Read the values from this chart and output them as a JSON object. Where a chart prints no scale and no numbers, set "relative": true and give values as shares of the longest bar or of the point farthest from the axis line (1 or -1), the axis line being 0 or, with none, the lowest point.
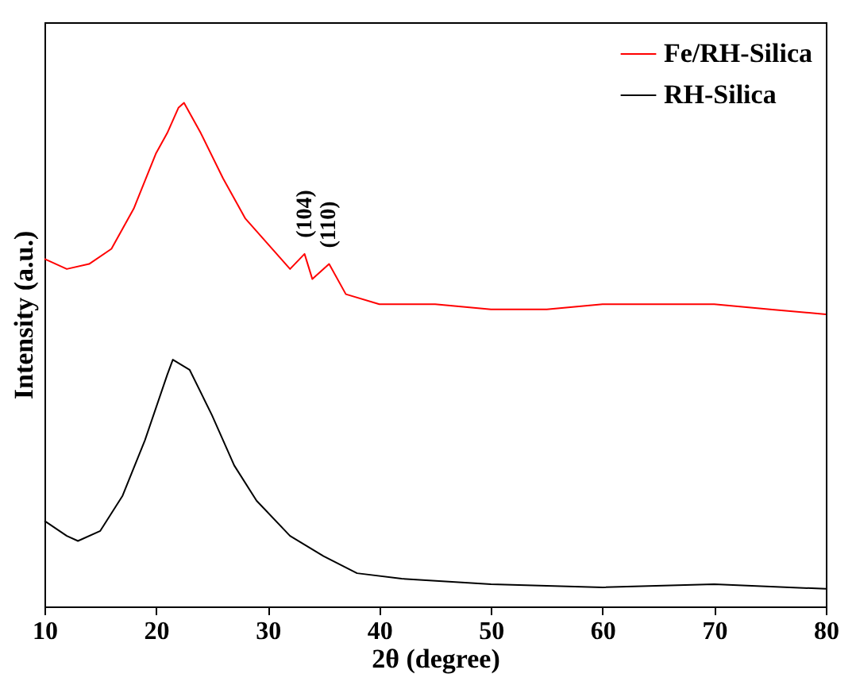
{
  "chart_data": {
    "type": "line",
    "xlabel": "2θ (degree)",
    "ylabel": "Intensity (a.u.)",
    "relative": true,
    "xlim": [
      10,
      80
    ],
    "xticks": [
      10,
      20,
      30,
      40,
      50,
      60,
      70,
      80
    ],
    "legend": "top right",
    "marker": "none",
    "line_style": "solid",
    "annotations": [
      {
        "text": "(104)",
        "x": 33.3,
        "y": 0.7
      },
      {
        "text": "(110)",
        "x": 35.5,
        "y": 0.68
      }
    ],
    "series": [
      {
        "name": "Fe/RH-Silica",
        "color": "#ff0000",
        "x": [
          10,
          12,
          14,
          16,
          18,
          20,
          21,
          22,
          22.5,
          24,
          26,
          28,
          30,
          32,
          33.3,
          34,
          35.5,
          37,
          40,
          45,
          50,
          55,
          60,
          65,
          70,
          75,
          80
        ],
        "values": [
          0.69,
          0.67,
          0.68,
          0.71,
          0.79,
          0.9,
          0.94,
          0.99,
          1.0,
          0.94,
          0.85,
          0.77,
          0.72,
          0.67,
          0.7,
          0.65,
          0.68,
          0.62,
          0.6,
          0.6,
          0.59,
          0.59,
          0.6,
          0.6,
          0.6,
          0.59,
          0.58
        ]
      },
      {
        "name": "RH-Silica",
        "color": "#000000",
        "x": [
          10,
          12,
          13,
          15,
          17,
          19,
          21,
          21.5,
          23,
          25,
          27,
          29,
          32,
          35,
          38,
          42,
          50,
          60,
          70,
          80
        ],
        "values": [
          0.17,
          0.14,
          0.13,
          0.15,
          0.22,
          0.33,
          0.46,
          0.49,
          0.47,
          0.38,
          0.28,
          0.21,
          0.14,
          0.1,
          0.066,
          0.055,
          0.044,
          0.038,
          0.044,
          0.035
        ]
      }
    ]
  }
}
